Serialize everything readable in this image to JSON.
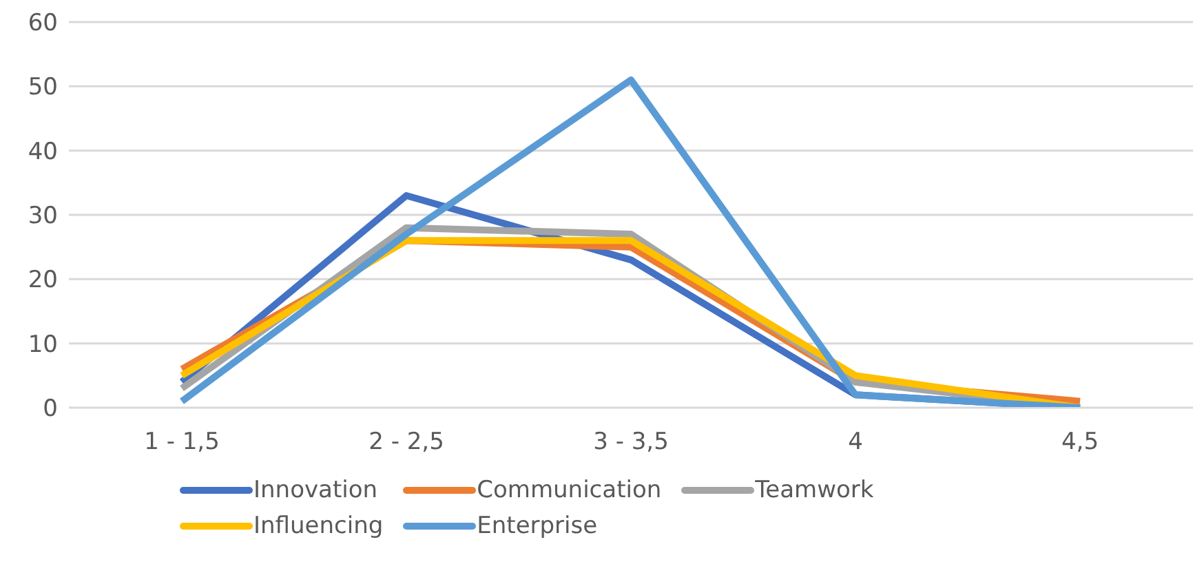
{
  "chart_data": {
    "type": "line",
    "categories": [
      "1 - 1,5",
      "2 - 2,5",
      "3 - 3,5",
      "4",
      "4,5"
    ],
    "series": [
      {
        "name": "Innovation",
        "color": "#4472c4",
        "values": [
          4,
          33,
          23,
          2,
          0
        ]
      },
      {
        "name": "Communication",
        "color": "#ed7d31",
        "values": [
          6,
          26,
          25,
          4,
          1
        ]
      },
      {
        "name": "Teamwork",
        "color": "#a5a5a5",
        "values": [
          3,
          28,
          27,
          4,
          0
        ]
      },
      {
        "name": "Influencing",
        "color": "#ffc000",
        "values": [
          5,
          26,
          26,
          5,
          0
        ]
      },
      {
        "name": "Enterprise",
        "color": "#5b9bd5",
        "values": [
          1,
          27,
          51,
          2,
          0
        ]
      }
    ],
    "ylim": [
      0,
      60
    ],
    "yticks": [
      0,
      10,
      20,
      30,
      40,
      50,
      60
    ],
    "grid": "y",
    "legend": "bottom",
    "marker": "none",
    "line_style": "solid"
  }
}
